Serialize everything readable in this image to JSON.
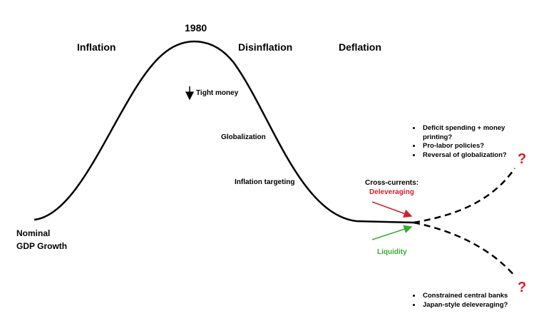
{
  "phases": [
    "Inflation",
    "Disinflation",
    "Deflation"
  ],
  "peak_label": "1980",
  "axis_label": [
    "Nominal",
    "GDP Growth"
  ],
  "drivers": [
    "Tight money",
    "Globalization",
    "Inflation targeting"
  ],
  "cross_currents": {
    "title": "Cross-currents:",
    "down": "Deleveraging",
    "up": "Liquidity"
  },
  "upside": {
    "marker": "?",
    "bullets": [
      "Deficit spending + money printing?",
      "Pro-labor policies?",
      "Reversal of globalization?"
    ]
  },
  "downside": {
    "marker": "?",
    "bullets": [
      "Constrained central banks",
      "Japan-style deleveraging?"
    ]
  }
}
